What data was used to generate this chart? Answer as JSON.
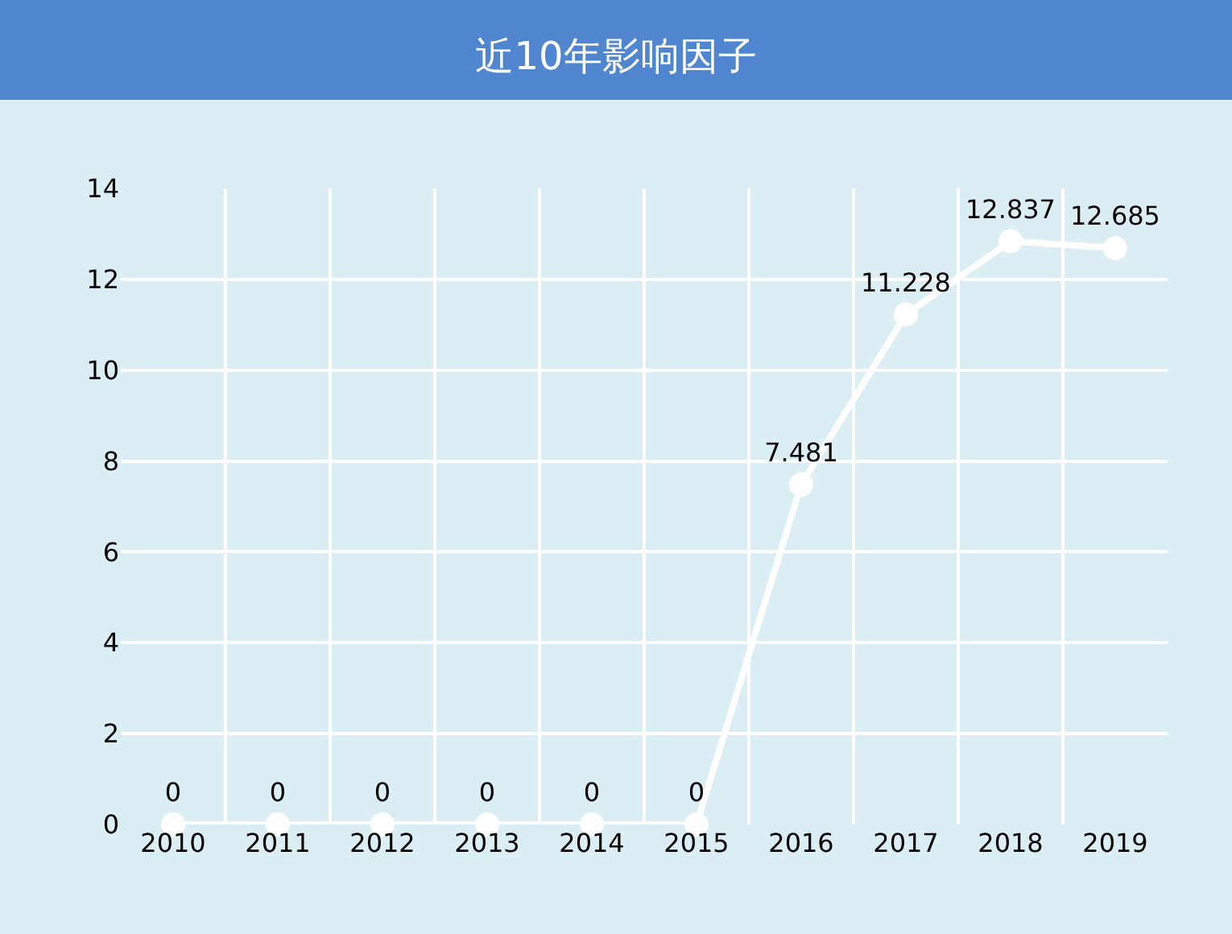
{
  "chart_data": {
    "type": "line",
    "title": "近10年影响因子",
    "categories": [
      "2010",
      "2011",
      "2012",
      "2013",
      "2014",
      "2015",
      "2016",
      "2017",
      "2018",
      "2019"
    ],
    "series": [
      {
        "color": "#ffffff",
        "values": [
          0,
          0,
          0,
          0,
          0,
          0,
          7.481,
          11.228,
          12.837,
          12.685
        ]
      }
    ],
    "ylim": [
      0,
      14
    ],
    "yticks": [
      0,
      2,
      4,
      6,
      8,
      10,
      12,
      14
    ],
    "grid": true,
    "legend": false,
    "marker": "circle",
    "line_style": "solid",
    "data_labels": true
  }
}
